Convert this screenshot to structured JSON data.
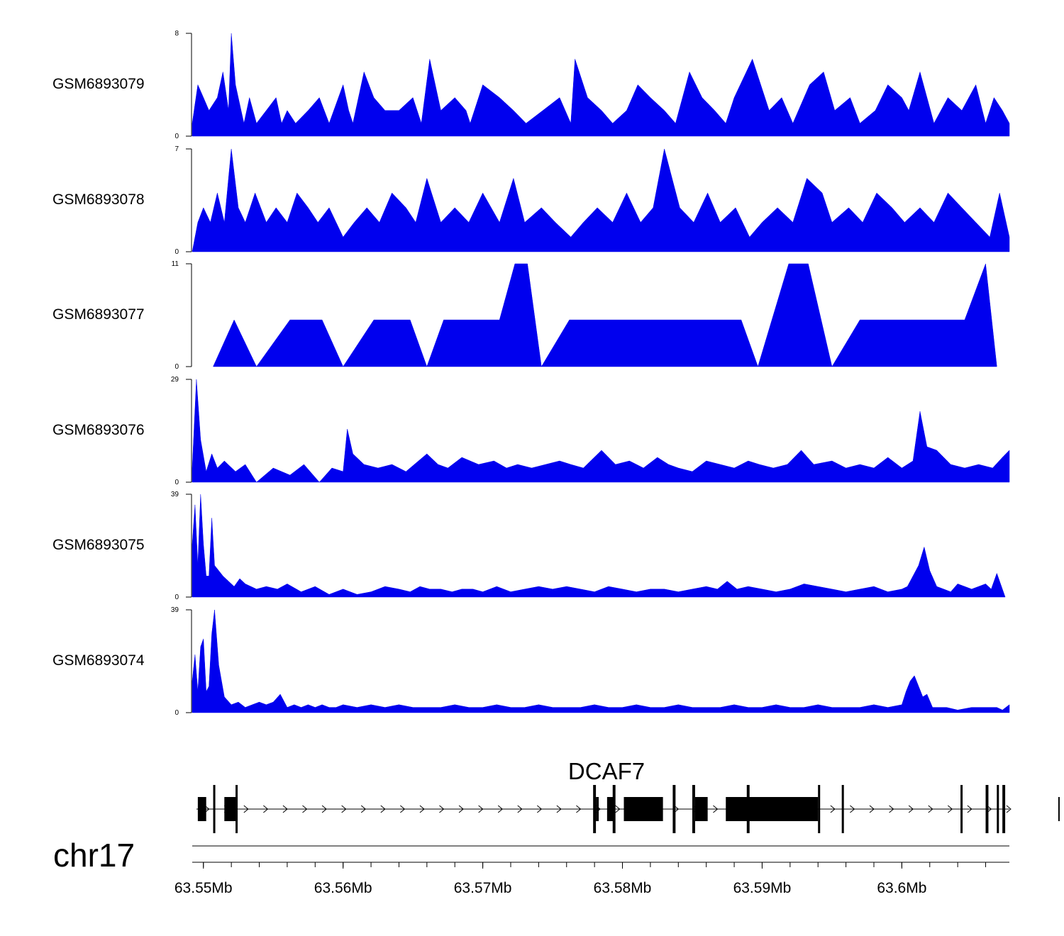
{
  "chart_data": {
    "type": "area",
    "title": "",
    "chromosome": "chr17",
    "xlim": [
      63.5492,
      63.6077
    ],
    "x_unit": "Mb",
    "x_ticks": [
      {
        "value": 63.55,
        "label": "63.55Mb"
      },
      {
        "value": 63.56,
        "label": "63.56Mb"
      },
      {
        "value": 63.57,
        "label": "63.57Mb"
      },
      {
        "value": 63.58,
        "label": "63.58Mb"
      },
      {
        "value": 63.59,
        "label": "63.59Mb"
      },
      {
        "value": 63.6,
        "label": "63.6Mb"
      }
    ],
    "minor_tick_step": 0.002,
    "fill_color": "#0000ee",
    "tracks": [
      {
        "name": "GSM6893079",
        "ylim": [
          0,
          8
        ],
        "ymax_label": "8",
        "ymin_label": "0",
        "x": [
          63.5492,
          63.5496,
          63.55,
          63.5504,
          63.551,
          63.5514,
          63.5518,
          63.552,
          63.5523,
          63.5527,
          63.5529,
          63.5533,
          63.5538,
          63.5545,
          63.5552,
          63.5556,
          63.556,
          63.5566,
          63.5575,
          63.5583,
          63.559,
          63.56,
          63.5604,
          63.5607,
          63.5615,
          63.5622,
          63.563,
          63.564,
          63.565,
          63.5656,
          63.5662,
          63.567,
          63.568,
          63.5688,
          63.5691,
          63.57,
          63.5712,
          63.5722,
          63.5731,
          63.5743,
          63.5755,
          63.5763,
          63.5766,
          63.5775,
          63.5785,
          63.5793,
          63.5803,
          63.5811,
          63.582,
          63.583,
          63.5838,
          63.5848,
          63.5857,
          63.5866,
          63.5874,
          63.588,
          63.5893,
          63.5905,
          63.5914,
          63.5922,
          63.5934,
          63.5944,
          63.5952,
          63.5963,
          63.597,
          63.5981,
          63.599,
          63.6,
          63.6005,
          63.6013,
          63.6023,
          63.6033,
          63.6043,
          63.6053,
          63.606,
          63.6066,
          63.6072,
          63.6077
        ],
        "values": [
          1,
          4,
          3,
          2,
          3,
          5,
          2,
          8,
          4,
          2,
          1,
          3,
          1,
          2,
          3,
          1,
          2,
          1,
          2,
          3,
          1,
          4,
          2,
          1,
          5,
          3,
          2,
          2,
          3,
          1,
          6,
          2,
          3,
          2,
          1,
          4,
          3,
          2,
          1,
          2,
          3,
          1,
          6,
          3,
          2,
          1,
          2,
          4,
          3,
          2,
          1,
          5,
          3,
          2,
          1,
          3,
          6,
          2,
          3,
          1,
          4,
          5,
          2,
          3,
          1,
          2,
          4,
          3,
          2,
          5,
          1,
          3,
          2,
          4,
          1,
          3,
          2,
          1
        ]
      },
      {
        "name": "GSM6893078",
        "ylim": [
          0,
          7
        ],
        "ymax_label": "7",
        "ymin_label": "0",
        "x": [
          63.5492,
          63.5496,
          63.55,
          63.5505,
          63.551,
          63.5515,
          63.552,
          63.5525,
          63.553,
          63.5537,
          63.5545,
          63.5552,
          63.556,
          63.5567,
          63.5575,
          63.5582,
          63.559,
          63.56,
          63.5608,
          63.5617,
          63.5626,
          63.5635,
          63.5645,
          63.5652,
          63.566,
          63.567,
          63.568,
          63.569,
          63.57,
          63.5712,
          63.5722,
          63.573,
          63.5742,
          63.5752,
          63.5763,
          63.5772,
          63.5782,
          63.5793,
          63.5803,
          63.5813,
          63.5822,
          63.583,
          63.5841,
          63.5851,
          63.5861,
          63.587,
          63.5881,
          63.5891,
          63.59,
          63.5911,
          63.5922,
          63.5932,
          63.5943,
          63.595,
          63.5962,
          63.5972,
          63.5982,
          63.5993,
          63.6002,
          63.6013,
          63.6023,
          63.6033,
          63.6043,
          63.6053,
          63.6063,
          63.607,
          63.6077
        ],
        "values": [
          0,
          2,
          3,
          2,
          4,
          2,
          7,
          3,
          2,
          4,
          2,
          3,
          2,
          4,
          3,
          2,
          3,
          1,
          2,
          3,
          2,
          4,
          3,
          2,
          5,
          2,
          3,
          2,
          4,
          2,
          5,
          2,
          3,
          2,
          1,
          2,
          3,
          2,
          4,
          2,
          3,
          7,
          3,
          2,
          4,
          2,
          3,
          1,
          2,
          3,
          2,
          5,
          4,
          2,
          3,
          2,
          4,
          3,
          2,
          3,
          2,
          4,
          3,
          2,
          1,
          4,
          1
        ]
      },
      {
        "name": "GSM6893077",
        "ylim": [
          0,
          11
        ],
        "ymax_label": "11",
        "ymin_label": "0",
        "x": [
          63.5507,
          63.5522,
          63.5538,
          63.5562,
          63.5578,
          63.5585,
          63.56,
          63.5622,
          63.5632,
          63.564,
          63.5648,
          63.566,
          63.5672,
          63.5685,
          63.5699,
          63.5712,
          63.5723,
          63.5732,
          63.5742,
          63.5762,
          63.5778,
          63.579,
          63.58,
          63.581,
          63.582,
          63.5832,
          63.584,
          63.585,
          63.586,
          63.5872,
          63.5885,
          63.5897,
          63.5907,
          63.5919,
          63.5933,
          63.595,
          63.597,
          63.5984,
          63.5995,
          63.6006,
          63.6016,
          63.6022,
          63.6033,
          63.6045,
          63.606,
          63.6068
        ],
        "values": [
          0,
          5,
          0,
          5,
          5,
          5,
          0,
          5,
          5,
          5,
          5,
          0,
          5,
          5,
          5,
          5,
          11,
          11,
          0,
          5,
          5,
          5,
          5,
          5,
          5,
          5,
          5,
          5,
          5,
          5,
          5,
          0,
          5,
          11,
          11,
          0,
          5,
          5,
          5,
          5,
          5,
          5,
          5,
          5,
          11,
          0
        ]
      },
      {
        "name": "GSM6893076",
        "ylim": [
          0,
          29
        ],
        "ymax_label": "29",
        "ymin_label": "0",
        "x": [
          63.5492,
          63.5495,
          63.5498,
          63.5502,
          63.5506,
          63.551,
          63.5515,
          63.5523,
          63.553,
          63.5538,
          63.555,
          63.5562,
          63.5572,
          63.5583,
          63.5592,
          63.56,
          63.5603,
          63.5607,
          63.5615,
          63.5625,
          63.5635,
          63.5645,
          63.566,
          63.5668,
          63.5675,
          63.5685,
          63.5697,
          63.5708,
          63.5717,
          63.5725,
          63.5735,
          63.5745,
          63.5755,
          63.5763,
          63.5772,
          63.5785,
          63.5795,
          63.5805,
          63.5815,
          63.5825,
          63.5833,
          63.584,
          63.585,
          63.586,
          63.587,
          63.588,
          63.589,
          63.5898,
          63.5908,
          63.5918,
          63.5928,
          63.5937,
          63.595,
          63.596,
          63.597,
          63.598,
          63.599,
          63.6,
          63.6008,
          63.6013,
          63.6018,
          63.6025,
          63.6035,
          63.6045,
          63.6055,
          63.6065,
          63.6072,
          63.6077
        ],
        "values": [
          4,
          29,
          12,
          3,
          8,
          4,
          6,
          3,
          5,
          0,
          4,
          2,
          5,
          0,
          4,
          3,
          15,
          8,
          5,
          4,
          5,
          3,
          8,
          5,
          4,
          7,
          5,
          6,
          4,
          5,
          4,
          5,
          6,
          5,
          4,
          9,
          5,
          6,
          4,
          7,
          5,
          4,
          3,
          6,
          5,
          4,
          6,
          5,
          4,
          5,
          9,
          5,
          6,
          4,
          5,
          4,
          7,
          4,
          6,
          20,
          10,
          9,
          5,
          4,
          5,
          4,
          7,
          9
        ]
      },
      {
        "name": "GSM6893075",
        "ylim": [
          0,
          39
        ],
        "ymax_label": "39",
        "ymin_label": "0",
        "x": [
          63.5492,
          63.5494,
          63.5496,
          63.5498,
          63.55,
          63.5502,
          63.5504,
          63.5506,
          63.5508,
          63.5511,
          63.5514,
          63.5518,
          63.5522,
          63.5526,
          63.553,
          63.5538,
          63.5545,
          63.5553,
          63.556,
          63.557,
          63.558,
          63.559,
          63.56,
          63.561,
          63.562,
          63.563,
          63.564,
          63.5648,
          63.5655,
          63.5662,
          63.567,
          63.5678,
          63.5685,
          63.5693,
          63.57,
          63.571,
          63.572,
          63.573,
          63.574,
          63.575,
          63.576,
          63.577,
          63.578,
          63.579,
          63.58,
          63.581,
          63.582,
          63.583,
          63.584,
          63.585,
          63.586,
          63.5868,
          63.5875,
          63.5882,
          63.589,
          63.59,
          63.591,
          63.592,
          63.593,
          63.594,
          63.595,
          63.596,
          63.597,
          63.598,
          63.599,
          63.6,
          63.6004,
          63.6008,
          63.6012,
          63.6016,
          63.602,
          63.6025,
          63.603,
          63.6035,
          63.604,
          63.6045,
          63.605,
          63.6055,
          63.606,
          63.6064,
          63.6068,
          63.6074
        ],
        "values": [
          20,
          35,
          12,
          39,
          20,
          8,
          8,
          30,
          12,
          10,
          8,
          6,
          4,
          7,
          5,
          3,
          4,
          3,
          5,
          2,
          4,
          1,
          3,
          1,
          2,
          4,
          3,
          2,
          4,
          3,
          3,
          2,
          3,
          3,
          2,
          4,
          2,
          3,
          4,
          3,
          4,
          3,
          2,
          4,
          3,
          2,
          3,
          3,
          2,
          3,
          4,
          3,
          6,
          3,
          4,
          3,
          2,
          3,
          5,
          4,
          3,
          2,
          3,
          4,
          2,
          3,
          4,
          8,
          12,
          19,
          10,
          4,
          3,
          2,
          5,
          4,
          3,
          4,
          5,
          3,
          9,
          0
        ]
      },
      {
        "name": "GSM6893074",
        "ylim": [
          0,
          39
        ],
        "ymax_label": "39",
        "ymin_label": "0",
        "x": [
          63.5492,
          63.5494,
          63.5496,
          63.5498,
          63.55,
          63.5502,
          63.5504,
          63.5506,
          63.5508,
          63.5511,
          63.5515,
          63.552,
          63.5525,
          63.553,
          63.5535,
          63.554,
          63.5545,
          63.555,
          63.5555,
          63.556,
          63.5565,
          63.557,
          63.5575,
          63.558,
          63.5585,
          63.559,
          63.5595,
          63.56,
          63.561,
          63.562,
          63.563,
          63.564,
          63.565,
          63.566,
          63.567,
          63.568,
          63.569,
          63.57,
          63.571,
          63.572,
          63.573,
          63.574,
          63.575,
          63.576,
          63.577,
          63.578,
          63.579,
          63.58,
          63.581,
          63.582,
          63.583,
          63.584,
          63.585,
          63.586,
          63.587,
          63.588,
          63.589,
          63.59,
          63.591,
          63.592,
          63.593,
          63.594,
          63.595,
          63.596,
          63.597,
          63.598,
          63.599,
          63.6,
          63.6003,
          63.6006,
          63.6009,
          63.6012,
          63.6015,
          63.6018,
          63.6022,
          63.6026,
          63.6032,
          63.604,
          63.605,
          63.606,
          63.6068,
          63.6072,
          63.6077
        ],
        "values": [
          12,
          22,
          8,
          25,
          28,
          8,
          10,
          30,
          39,
          18,
          6,
          3,
          4,
          2,
          3,
          4,
          3,
          4,
          7,
          2,
          3,
          2,
          3,
          2,
          3,
          2,
          2,
          3,
          2,
          3,
          2,
          3,
          2,
          2,
          2,
          3,
          2,
          2,
          3,
          2,
          2,
          3,
          2,
          2,
          2,
          3,
          2,
          2,
          3,
          2,
          2,
          3,
          2,
          2,
          2,
          3,
          2,
          2,
          3,
          2,
          2,
          3,
          2,
          2,
          2,
          3,
          2,
          3,
          8,
          12,
          14,
          10,
          6,
          7,
          2,
          2,
          2,
          1,
          2,
          2,
          2,
          1,
          3
        ]
      }
    ],
    "gene_track": {
      "gene_label": "DCAF7",
      "strand": "+",
      "span": [
        63.5495,
        63.6077
      ],
      "exons_tall": [
        [
          63.5496,
          63.5502
        ],
        [
          63.5515,
          63.5524
        ],
        [
          63.5781,
          63.5783
        ],
        [
          63.5789,
          63.5794
        ],
        [
          63.5801,
          63.5829
        ],
        [
          63.5852,
          63.5861
        ],
        [
          63.5874,
          63.594
        ],
        [
          63.6112,
          63.6113
        ]
      ],
      "exons_thin": [
        [
          63.5507,
          63.5508
        ],
        [
          63.5523,
          63.5524
        ],
        [
          63.5779,
          63.5781
        ],
        [
          63.5793,
          63.5795
        ],
        [
          63.5836,
          63.5838
        ],
        [
          63.585,
          63.5852
        ],
        [
          63.5889,
          63.5891
        ],
        [
          63.594,
          63.5941
        ],
        [
          63.5957,
          63.5958
        ],
        [
          63.6042,
          63.6043
        ],
        [
          63.606,
          63.6062
        ],
        [
          63.6068,
          63.6069
        ],
        [
          63.6072,
          63.6074
        ]
      ]
    }
  }
}
